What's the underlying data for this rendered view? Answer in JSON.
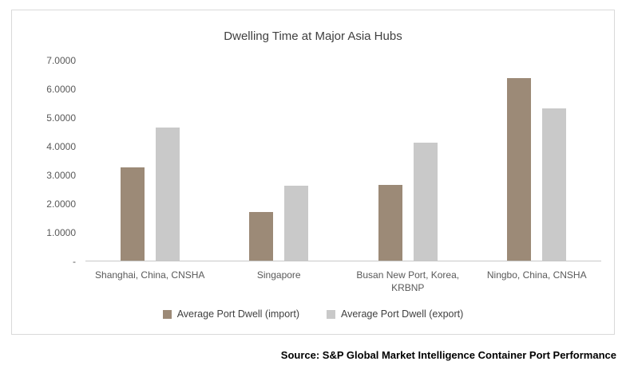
{
  "chart_data": {
    "type": "bar",
    "title": "Dwelling Time at Major Asia Hubs",
    "categories": [
      "Shanghai, China, CNSHA",
      "Singapore",
      "Busan New Port, Korea, KRBNP",
      "Ningbo, China, CNSHA"
    ],
    "series": [
      {
        "name": "Average Port Dwell (import)",
        "color": "#9c8a77",
        "values": [
          3.25,
          1.7,
          2.65,
          6.35
        ]
      },
      {
        "name": "Average Port Dwell (export)",
        "color": "#c9c9c9",
        "values": [
          4.65,
          2.6,
          4.1,
          5.3
        ]
      }
    ],
    "xlabel": "",
    "ylabel": "",
    "ylim": [
      0,
      7
    ],
    "y_ticks": [
      "7.0000",
      "6.0000",
      "5.0000",
      "4.0000",
      "3.0000",
      "2.0000",
      "1.0000",
      "-"
    ],
    "grid": false,
    "legend_position": "bottom"
  },
  "source": "Source: S&P Global Market Intelligence Container Port Performance"
}
